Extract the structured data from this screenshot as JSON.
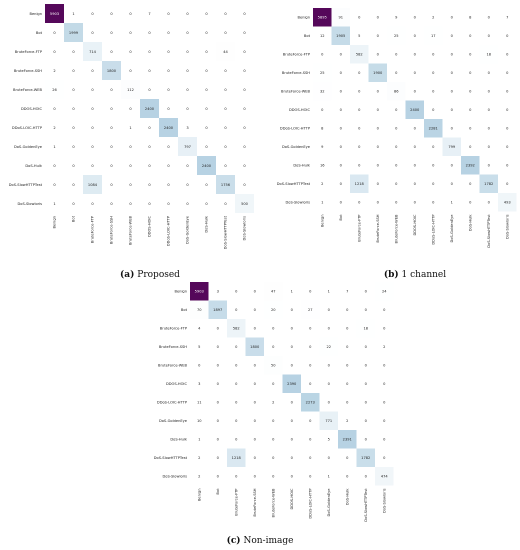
{
  "colors": {
    "low": "#ffffff",
    "mid": "#a6c8dc",
    "high": "#55085a"
  },
  "chart_data": [
    {
      "type": "heatmap",
      "caption_tag": "(a)",
      "caption_text": "Proposed",
      "title": "",
      "xlabel": "",
      "ylabel": "",
      "categories": [
        "Benign",
        "Bot",
        "BruteForce-FTP",
        "BruteForce-SSH",
        "BruteForce-WEB",
        "DDOS-HOIC",
        "DDoS-LOIC-HTTP",
        "DoS-GoldenEye",
        "DoS-Hulk",
        "DoS-SlowHTTPTest",
        "DoS-Slowloris"
      ],
      "values": [
        [
          "5903",
          "1",
          "0",
          "0",
          "0",
          "7",
          "0",
          "0",
          "0",
          "0",
          "0"
        ],
        [
          "0",
          "1999",
          "0",
          "0",
          "0",
          "0",
          "0",
          "0",
          "0",
          "0",
          "0"
        ],
        [
          "0",
          "0",
          "714",
          "0",
          "0",
          "0",
          "0",
          "0",
          "0",
          "44",
          "0"
        ],
        [
          "2",
          "0",
          "0",
          "1800",
          "0",
          "0",
          "0",
          "0",
          "0",
          "0",
          "0"
        ],
        [
          "26",
          "0",
          "0",
          "0",
          "112",
          "0",
          "0",
          "0",
          "0",
          "0",
          "0"
        ],
        [
          "0",
          "0",
          "0",
          "0",
          "0",
          "2400",
          "0",
          "0",
          "0",
          "0",
          "0"
        ],
        [
          "2",
          "0",
          "0",
          "0",
          "1",
          "0",
          "2400",
          "3",
          "0",
          "0",
          "0"
        ],
        [
          "1",
          "0",
          "0",
          "0",
          "0",
          "0",
          "0",
          "797",
          "0",
          "0",
          "0"
        ],
        [
          "0",
          "0",
          "0",
          "0",
          "0",
          "0",
          "0",
          "0",
          "2400",
          "0",
          "0"
        ],
        [
          "0",
          "0",
          "1084",
          "0",
          "0",
          "0",
          "0",
          "0",
          "0",
          "1756",
          "0"
        ],
        [
          "1",
          "0",
          "0",
          "0",
          "0",
          "0",
          "0",
          "0",
          "0",
          "0",
          "500"
        ]
      ]
    },
    {
      "type": "heatmap",
      "caption_tag": "(b)",
      "caption_text": "1 channel",
      "title": "",
      "xlabel": "",
      "ylabel": "",
      "categories": [
        "Benign",
        "Bot",
        "BruteForce-FTP",
        "BruteForce-SSH",
        "BruteForce-WEB",
        "DDOS-HOIC",
        "DDoS-LOIC-HTTP",
        "DoS-GoldenEye",
        "DoS-Hulk",
        "DoS-SlowHTTPTest",
        "DoS-Slowloris"
      ],
      "values": [
        [
          "5895",
          "91",
          "0",
          "0",
          "9",
          "0",
          "2",
          "0",
          "8",
          "0",
          "7"
        ],
        [
          "12",
          "1905",
          "5",
          "0",
          "25",
          "0",
          "17",
          "0",
          "0",
          "0",
          "0"
        ],
        [
          "0",
          "0",
          "582",
          "0",
          "0",
          "0",
          "0",
          "0",
          "0",
          "18",
          "0"
        ],
        [
          "25",
          "0",
          "0",
          "1900",
          "0",
          "0",
          "0",
          "0",
          "0",
          "0",
          "0"
        ],
        [
          "32",
          "0",
          "0",
          "0",
          "86",
          "0",
          "0",
          "0",
          "0",
          "0",
          "0"
        ],
        [
          "0",
          "0",
          "0",
          "0",
          "0",
          "2400",
          "0",
          "0",
          "0",
          "0",
          "0"
        ],
        [
          "8",
          "0",
          "0",
          "0",
          "0",
          "0",
          "2281",
          "0",
          "0",
          "0",
          "0"
        ],
        [
          "9",
          "0",
          "0",
          "0",
          "0",
          "0",
          "0",
          "799",
          "0",
          "0",
          "0"
        ],
        [
          "16",
          "0",
          "0",
          "0",
          "0",
          "0",
          "0",
          "0",
          "2392",
          "0",
          "0"
        ],
        [
          "2",
          "0",
          "1218",
          "0",
          "0",
          "0",
          "0",
          "0",
          "0",
          "1782",
          "0"
        ],
        [
          "1",
          "0",
          "0",
          "0",
          "0",
          "0",
          "0",
          "1",
          "0",
          "0",
          "493"
        ]
      ]
    },
    {
      "type": "heatmap",
      "caption_tag": "(c)",
      "caption_text": "Non-image",
      "title": "",
      "xlabel": "",
      "ylabel": "",
      "categories": [
        "Benign",
        "Bot",
        "BruteForce-FTP",
        "BruteForce-SSH",
        "BruteForce-WEB",
        "DDOS-HOIC",
        "DDoS-LOIC-HTTP",
        "DoS-GoldenEye",
        "DoS-Hulk",
        "DoS-SlowHTTPTest",
        "DoS-Slowloris"
      ],
      "values": [
        [
          "5903",
          "3",
          "0",
          "0",
          "47",
          "1",
          "0",
          "1",
          "7",
          "0",
          "24"
        ],
        [
          "70",
          "1897",
          "0",
          "0",
          "20",
          "0",
          "27",
          "0",
          "0",
          "0",
          "0"
        ],
        [
          "4",
          "0",
          "582",
          "0",
          "0",
          "0",
          "0",
          "0",
          "0",
          "18",
          "0"
        ],
        [
          "5",
          "0",
          "0",
          "1800",
          "0",
          "0",
          "0",
          "22",
          "0",
          "0",
          "2"
        ],
        [
          "0",
          "0",
          "0",
          "0",
          "50",
          "0",
          "0",
          "0",
          "0",
          "0",
          "0"
        ],
        [
          "3",
          "0",
          "0",
          "0",
          "0",
          "2390",
          "0",
          "0",
          "0",
          "0",
          "0"
        ],
        [
          "11",
          "0",
          "0",
          "0",
          "2",
          "0",
          "2273",
          "0",
          "0",
          "0",
          "0"
        ],
        [
          "10",
          "0",
          "0",
          "0",
          "0",
          "0",
          "0",
          "771",
          "2",
          "0",
          "0"
        ],
        [
          "1",
          "0",
          "0",
          "0",
          "0",
          "0",
          "0",
          "5",
          "2391",
          "0",
          "0"
        ],
        [
          "2",
          "0",
          "1218",
          "0",
          "0",
          "0",
          "0",
          "0",
          "0",
          "1782",
          "0"
        ],
        [
          "2",
          "0",
          "0",
          "0",
          "0",
          "0",
          "0",
          "1",
          "0",
          "0",
          "474"
        ]
      ]
    }
  ]
}
